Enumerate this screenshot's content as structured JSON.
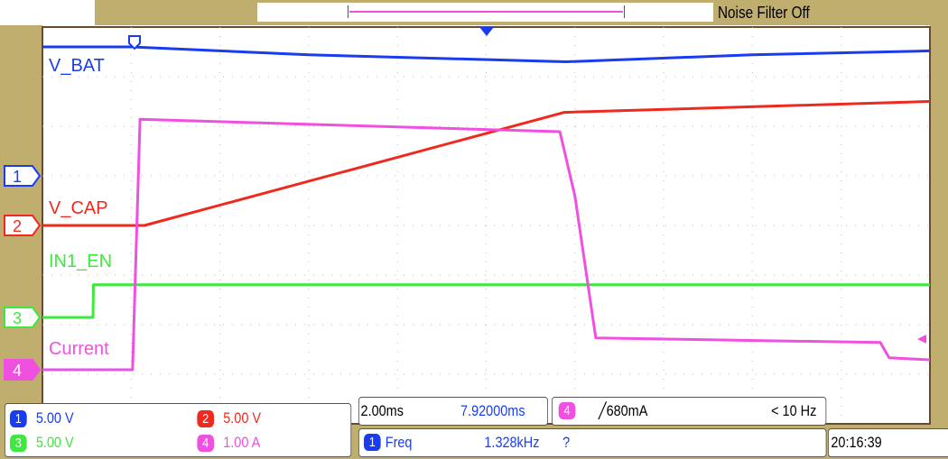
{
  "header": {
    "noise_filter": "Noise Filter Off"
  },
  "colors": {
    "ch1": "#1a3cf0",
    "ch2": "#ee2a1e",
    "ch3": "#3ee83e",
    "ch4": "#f050e0",
    "frame": "#bfae6e"
  },
  "channels": [
    {
      "num": "1",
      "scale": "5.00 V",
      "label": "V_BAT"
    },
    {
      "num": "2",
      "scale": "5.00 V",
      "label": "V_CAP"
    },
    {
      "num": "3",
      "scale": "5.00 V",
      "label": "IN1_EN"
    },
    {
      "num": "4",
      "scale": "1.00 A",
      "label": "Current"
    }
  ],
  "timebase": {
    "per_div": "2.00ms",
    "position": "7.92000ms"
  },
  "trigger": {
    "source": "4",
    "slope_level": "680mA",
    "rate": "< 10 Hz"
  },
  "measurement": {
    "source": "1",
    "name": "Freq",
    "value": "1.328kHz",
    "status": "?"
  },
  "clock": "20:16:39",
  "chart_data": {
    "type": "line",
    "grid": true,
    "xlim_ms": [
      0,
      20
    ],
    "divisions": {
      "x": 10,
      "y": 8
    },
    "series": [
      {
        "name": "V_BAT",
        "unit": "V",
        "x": [
          0,
          2.0,
          6,
          11.8,
          16,
          20
        ],
        "y": [
          13.0,
          13.0,
          12.2,
          11.5,
          12.2,
          12.6
        ]
      },
      {
        "name": "V_CAP",
        "unit": "V",
        "x": [
          0,
          2.3,
          11.76,
          20
        ],
        "y": [
          0,
          0,
          11.4,
          12.5
        ]
      },
      {
        "name": "IN1_EN",
        "unit": "V",
        "x": [
          0,
          1.14,
          1.15,
          20
        ],
        "y": [
          0,
          0,
          3.3,
          3.3
        ]
      },
      {
        "name": "Current",
        "unit": "A",
        "x": [
          0,
          2.03,
          2.2,
          11.66,
          12.0,
          12.47,
          18.88,
          19.08,
          20
        ],
        "y": [
          0,
          0,
          5.05,
          4.8,
          3.5,
          0.64,
          0.55,
          0.24,
          0.2
        ]
      }
    ]
  }
}
